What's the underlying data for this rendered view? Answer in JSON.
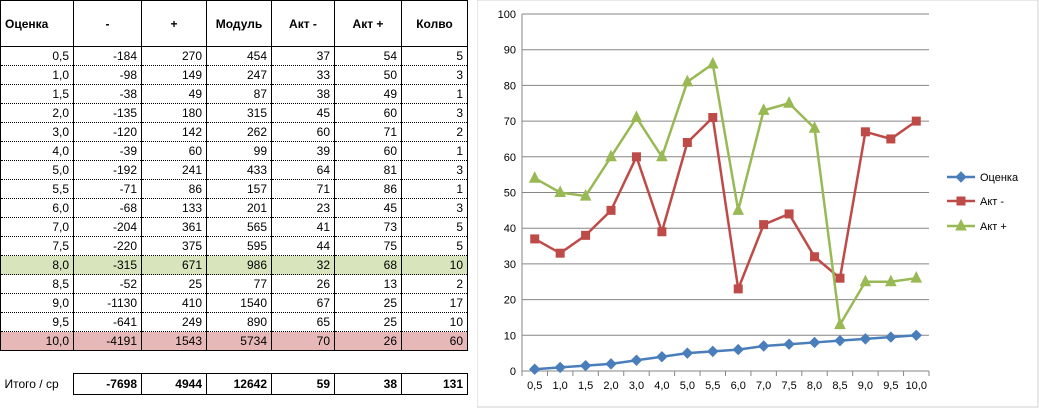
{
  "table": {
    "headers": [
      "Оценка",
      "-",
      "+",
      "Модуль",
      "Акт -",
      "Акт +",
      "Колво"
    ],
    "rows": [
      [
        "0,5",
        "-184",
        "270",
        "454",
        "37",
        "54",
        "5"
      ],
      [
        "1,0",
        "-98",
        "149",
        "247",
        "33",
        "50",
        "3"
      ],
      [
        "1,5",
        "-38",
        "49",
        "87",
        "38",
        "49",
        "1"
      ],
      [
        "2,0",
        "-135",
        "180",
        "315",
        "45",
        "60",
        "3"
      ],
      [
        "3,0",
        "-120",
        "142",
        "262",
        "60",
        "71",
        "2"
      ],
      [
        "4,0",
        "-39",
        "60",
        "99",
        "39",
        "60",
        "1"
      ],
      [
        "5,0",
        "-192",
        "241",
        "433",
        "64",
        "81",
        "3"
      ],
      [
        "5,5",
        "-71",
        "86",
        "157",
        "71",
        "86",
        "1"
      ],
      [
        "6,0",
        "-68",
        "133",
        "201",
        "23",
        "45",
        "3"
      ],
      [
        "7,0",
        "-204",
        "361",
        "565",
        "41",
        "73",
        "5"
      ],
      [
        "7,5",
        "-220",
        "375",
        "595",
        "44",
        "75",
        "5"
      ],
      [
        "8,0",
        "-315",
        "671",
        "986",
        "32",
        "68",
        "10"
      ],
      [
        "8,5",
        "-52",
        "25",
        "77",
        "26",
        "13",
        "2"
      ],
      [
        "9,0",
        "-1130",
        "410",
        "1540",
        "67",
        "25",
        "17"
      ],
      [
        "9,5",
        "-641",
        "249",
        "890",
        "65",
        "25",
        "10"
      ],
      [
        "10,0",
        "-4191",
        "1543",
        "5734",
        "70",
        "26",
        "60"
      ]
    ],
    "highlight": {
      "green_row": 11,
      "red_row": 15,
      "green_color": "#d8e4bc",
      "red_color": "#e6b8b7"
    },
    "total": {
      "label": "Итого / ср",
      "values": [
        "-7698",
        "4944",
        "12642",
        "59",
        "38",
        "131"
      ]
    }
  },
  "chart_data": {
    "type": "line",
    "categories": [
      "0,5",
      "1,0",
      "1,5",
      "2,0",
      "3,0",
      "4,0",
      "5,0",
      "5,5",
      "6,0",
      "7,0",
      "7,5",
      "8,0",
      "8,5",
      "9,0",
      "9,5",
      "10,0"
    ],
    "series": [
      {
        "name": "Оценка",
        "color": "#4a7ebb",
        "marker": "diamond",
        "values": [
          0.5,
          1.0,
          1.5,
          2.0,
          3.0,
          4.0,
          5.0,
          5.5,
          6.0,
          7.0,
          7.5,
          8.0,
          8.5,
          9.0,
          9.5,
          10.0
        ]
      },
      {
        "name": "Акт -",
        "color": "#be4b48",
        "marker": "square",
        "values": [
          37,
          33,
          38,
          45,
          60,
          39,
          64,
          71,
          23,
          41,
          44,
          32,
          26,
          67,
          65,
          70
        ]
      },
      {
        "name": "Акт +",
        "color": "#98b954",
        "marker": "triangle",
        "values": [
          54,
          50,
          49,
          60,
          71,
          60,
          81,
          86,
          45,
          73,
          75,
          68,
          13,
          25,
          25,
          26
        ]
      }
    ],
    "yticks": [
      "0",
      "10",
      "20",
      "30",
      "40",
      "50",
      "60",
      "70",
      "80",
      "90",
      "100"
    ],
    "ylim": [
      0,
      100
    ],
    "grid": true,
    "legend": "right"
  }
}
